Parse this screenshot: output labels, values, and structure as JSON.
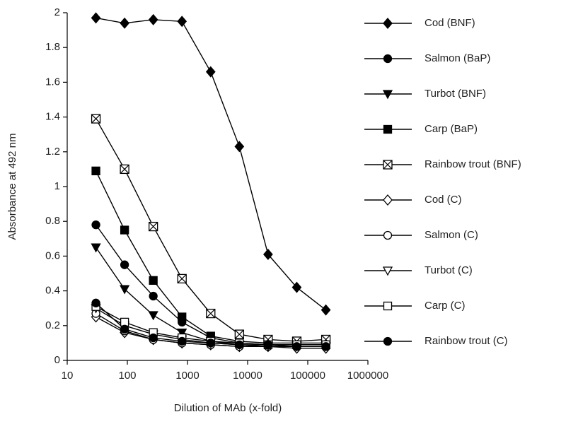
{
  "chart_data": {
    "type": "line",
    "xlabel": "Dilution of MAb (x-fold)",
    "ylabel": "Absorbance at 492 nm",
    "xscale": "log",
    "x": [
      30,
      90,
      270,
      810,
      2430,
      7290,
      21870,
      65610,
      200000
    ],
    "xlim": [
      10,
      1000000
    ],
    "xticks": [
      10,
      100,
      1000,
      10000,
      100000,
      1000000
    ],
    "ylim": [
      0,
      2
    ],
    "yticks": [
      0,
      0.2,
      0.4,
      0.6,
      0.8,
      1,
      1.2,
      1.4,
      1.6,
      1.8,
      2
    ],
    "legend": "right",
    "series": [
      {
        "name": "Cod (BNF)",
        "color": "#000000",
        "marker": "diamond",
        "fill": "#000000",
        "values": [
          1.97,
          1.94,
          1.96,
          1.95,
          1.66,
          1.23,
          0.61,
          0.42,
          0.29
        ]
      },
      {
        "name": "Salmon (BaP)",
        "color": "#000000",
        "marker": "circle",
        "fill": "#000000",
        "values": [
          0.78,
          0.55,
          0.37,
          0.22,
          0.13,
          0.1,
          0.09,
          0.09,
          0.09
        ]
      },
      {
        "name": "Turbot (BNF)",
        "color": "#000000",
        "marker": "triangle-down",
        "fill": "#000000",
        "values": [
          0.65,
          0.41,
          0.26,
          0.16,
          0.11,
          0.09,
          0.08,
          0.08,
          0.08
        ]
      },
      {
        "name": "Carp (BaP)",
        "color": "#000000",
        "marker": "square",
        "fill": "#000000",
        "values": [
          1.09,
          0.75,
          0.46,
          0.25,
          0.14,
          0.11,
          0.1,
          0.1,
          0.1
        ]
      },
      {
        "name": "Rainbow trout (BNF)",
        "color": "#000000",
        "marker": "square-x",
        "fill": "#ffffff",
        "values": [
          1.39,
          1.1,
          0.77,
          0.47,
          0.27,
          0.15,
          0.12,
          0.11,
          0.12
        ]
      },
      {
        "name": "Cod (C)",
        "color": "#000000",
        "marker": "diamond",
        "fill": "#ffffff",
        "values": [
          0.25,
          0.16,
          0.12,
          0.1,
          0.09,
          0.08,
          0.08,
          0.07,
          0.07
        ]
      },
      {
        "name": "Salmon (C)",
        "color": "#000000",
        "marker": "circle",
        "fill": "#ffffff",
        "values": [
          0.27,
          0.17,
          0.12,
          0.1,
          0.09,
          0.08,
          0.08,
          0.08,
          0.08
        ]
      },
      {
        "name": "Turbot (C)",
        "color": "#000000",
        "marker": "triangle-down",
        "fill": "#ffffff",
        "values": [
          0.3,
          0.2,
          0.15,
          0.12,
          0.1,
          0.09,
          0.08,
          0.08,
          0.08
        ]
      },
      {
        "name": "Carp (C)",
        "color": "#000000",
        "marker": "square",
        "fill": "#ffffff",
        "values": [
          0.31,
          0.22,
          0.16,
          0.13,
          0.11,
          0.1,
          0.09,
          0.09,
          0.09
        ]
      },
      {
        "name": "Rainbow trout (C)",
        "color": "#000000",
        "marker": "circle",
        "fill": "#000000",
        "values": [
          0.33,
          0.18,
          0.13,
          0.11,
          0.1,
          0.09,
          0.09,
          0.08,
          0.08
        ]
      }
    ]
  }
}
